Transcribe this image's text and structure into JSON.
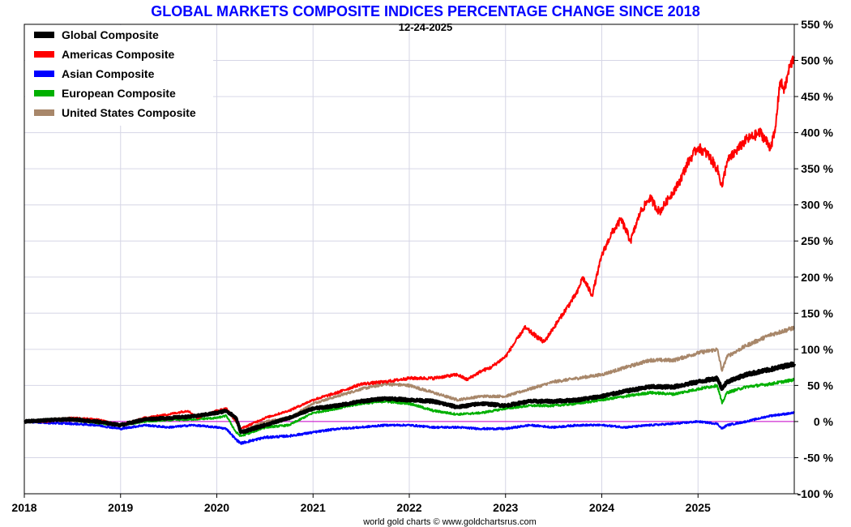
{
  "chart_data": {
    "type": "line",
    "title": "GLOBAL MARKETS COMPOSITE INDICES PERCENTAGE CHANGE SINCE 2018",
    "subtitle": "12-24-2025",
    "credit": "world gold charts © www.goldchartsrus.com",
    "title_color": "#0000ff",
    "xlabel": "",
    "ylabel": "",
    "xlim": [
      2018,
      2026
    ],
    "ylim": [
      -100,
      550
    ],
    "x_ticks": [
      "2018",
      "2019",
      "2020",
      "2021",
      "2022",
      "2023",
      "2024",
      "2025"
    ],
    "y_ticks": [
      "550 %",
      "500 %",
      "450 %",
      "400 %",
      "350 %",
      "300 %",
      "250 %",
      "200 %",
      "150 %",
      "100 %",
      "50 %",
      "0 %",
      "-50 %",
      "-100 %"
    ],
    "zero_line_color": "#cc00cc",
    "grid": true,
    "legend_position": "top-left",
    "series": [
      {
        "name": "Global Composite",
        "color": "#000000",
        "width": 4,
        "x": [
          2018.0,
          2018.25,
          2018.5,
          2018.75,
          2019.0,
          2019.25,
          2019.5,
          2019.75,
          2020.0,
          2020.1,
          2020.2,
          2020.25,
          2020.5,
          2020.75,
          2021.0,
          2021.25,
          2021.5,
          2021.75,
          2022.0,
          2022.25,
          2022.5,
          2022.75,
          2023.0,
          2023.25,
          2023.5,
          2023.75,
          2024.0,
          2024.25,
          2024.5,
          2024.75,
          2025.0,
          2025.2,
          2025.25,
          2025.3,
          2025.5,
          2025.75,
          2026.0
        ],
        "y": [
          0,
          2,
          3,
          0,
          -5,
          3,
          5,
          7,
          12,
          15,
          5,
          -15,
          -5,
          5,
          18,
          22,
          28,
          32,
          30,
          28,
          20,
          25,
          22,
          28,
          28,
          30,
          35,
          42,
          48,
          48,
          55,
          60,
          45,
          55,
          65,
          72,
          80
        ]
      },
      {
        "name": "Americas Composite",
        "color": "#ff0000",
        "width": 2,
        "x": [
          2018.0,
          2018.25,
          2018.5,
          2018.75,
          2019.0,
          2019.25,
          2019.5,
          2019.7,
          2019.8,
          2020.0,
          2020.1,
          2020.2,
          2020.25,
          2020.5,
          2020.75,
          2021.0,
          2021.25,
          2021.5,
          2021.75,
          2022.0,
          2022.25,
          2022.5,
          2022.6,
          2022.75,
          2022.85,
          2023.0,
          2023.2,
          2023.4,
          2023.5,
          2023.6,
          2023.75,
          2023.8,
          2023.9,
          2024.0,
          2024.1,
          2024.2,
          2024.3,
          2024.4,
          2024.5,
          2024.6,
          2024.7,
          2024.8,
          2024.9,
          2025.0,
          2025.1,
          2025.2,
          2025.25,
          2025.3,
          2025.5,
          2025.65,
          2025.75,
          2025.8,
          2025.85,
          2025.9,
          2025.95,
          2026.0
        ],
        "y": [
          0,
          0,
          5,
          3,
          -5,
          5,
          10,
          15,
          5,
          15,
          18,
          0,
          -10,
          5,
          15,
          30,
          40,
          52,
          55,
          60,
          60,
          65,
          58,
          70,
          75,
          90,
          130,
          110,
          130,
          150,
          180,
          200,
          175,
          230,
          260,
          280,
          250,
          290,
          310,
          290,
          310,
          330,
          360,
          380,
          370,
          350,
          325,
          360,
          390,
          400,
          380,
          400,
          470,
          460,
          490,
          505
        ]
      },
      {
        "name": "Asian Composite",
        "color": "#0000ff",
        "width": 2,
        "x": [
          2018.0,
          2018.25,
          2018.5,
          2018.75,
          2019.0,
          2019.25,
          2019.5,
          2019.75,
          2020.0,
          2020.1,
          2020.2,
          2020.25,
          2020.5,
          2020.75,
          2021.0,
          2021.25,
          2021.5,
          2021.75,
          2022.0,
          2022.25,
          2022.5,
          2022.75,
          2023.0,
          2023.25,
          2023.5,
          2023.75,
          2024.0,
          2024.25,
          2024.5,
          2024.75,
          2025.0,
          2025.2,
          2025.25,
          2025.3,
          2025.5,
          2025.75,
          2026.0
        ],
        "y": [
          0,
          -2,
          -3,
          -5,
          -10,
          -5,
          -8,
          -5,
          -8,
          -10,
          -25,
          -30,
          -22,
          -20,
          -15,
          -10,
          -8,
          -5,
          -5,
          -8,
          -8,
          -10,
          -10,
          -5,
          -8,
          -5,
          -5,
          -8,
          -5,
          -3,
          0,
          -3,
          -10,
          -5,
          0,
          8,
          12
        ]
      },
      {
        "name": "European Composite",
        "color": "#00b000",
        "width": 2,
        "x": [
          2018.0,
          2018.25,
          2018.5,
          2018.75,
          2019.0,
          2019.25,
          2019.5,
          2019.75,
          2020.0,
          2020.1,
          2020.2,
          2020.25,
          2020.5,
          2020.75,
          2021.0,
          2021.25,
          2021.5,
          2021.75,
          2022.0,
          2022.25,
          2022.5,
          2022.75,
          2023.0,
          2023.25,
          2023.5,
          2023.75,
          2024.0,
          2024.25,
          2024.5,
          2024.75,
          2025.0,
          2025.2,
          2025.25,
          2025.3,
          2025.5,
          2025.75,
          2026.0
        ],
        "y": [
          0,
          3,
          2,
          -2,
          -5,
          0,
          2,
          3,
          5,
          8,
          -15,
          -20,
          -8,
          -5,
          12,
          18,
          25,
          28,
          25,
          15,
          10,
          12,
          18,
          22,
          22,
          25,
          30,
          35,
          40,
          38,
          45,
          50,
          25,
          40,
          48,
          52,
          58
        ]
      },
      {
        "name": "United States Composite",
        "color": "#a8876a",
        "width": 2,
        "x": [
          2018.0,
          2018.25,
          2018.5,
          2018.75,
          2019.0,
          2019.25,
          2019.5,
          2019.75,
          2020.0,
          2020.1,
          2020.2,
          2020.25,
          2020.5,
          2020.75,
          2021.0,
          2021.25,
          2021.5,
          2021.75,
          2022.0,
          2022.25,
          2022.5,
          2022.75,
          2023.0,
          2023.25,
          2023.5,
          2023.75,
          2024.0,
          2024.25,
          2024.5,
          2024.75,
          2025.0,
          2025.2,
          2025.25,
          2025.3,
          2025.5,
          2025.75,
          2026.0
        ],
        "y": [
          0,
          3,
          5,
          2,
          -5,
          3,
          5,
          8,
          12,
          15,
          0,
          -15,
          0,
          5,
          25,
          35,
          45,
          52,
          50,
          40,
          30,
          35,
          35,
          45,
          55,
          60,
          65,
          75,
          85,
          85,
          95,
          100,
          70,
          90,
          105,
          120,
          130
        ]
      }
    ]
  }
}
